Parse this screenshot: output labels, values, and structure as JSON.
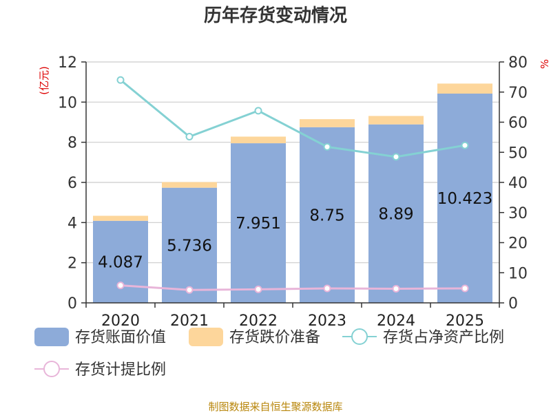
{
  "chart_data": {
    "type": "bar",
    "title": "历年存货变动情况",
    "categories": [
      "2020",
      "2021",
      "2022",
      "2023",
      "2024",
      "2025"
    ],
    "left_axis": {
      "label": "(亿元)",
      "ylim": [
        0,
        12
      ],
      "ticks": [
        "0",
        "2",
        "4",
        "6",
        "8",
        "10",
        "12"
      ]
    },
    "right_axis": {
      "label": "%",
      "ylim": [
        0,
        80
      ],
      "ticks": [
        "0",
        "10",
        "20",
        "30",
        "40",
        "50",
        "60",
        "70",
        "80"
      ]
    },
    "series": [
      {
        "name": "存货账面价值",
        "type": "bar",
        "stack": "inventory",
        "axis": "left",
        "color": "#8dabd9",
        "values": [
          4.087,
          5.736,
          7.951,
          8.75,
          8.89,
          10.423
        ],
        "labels": [
          "4.087",
          "5.736",
          "7.951",
          "8.75",
          "8.89",
          "10.423"
        ]
      },
      {
        "name": "存货跌价准备",
        "type": "bar",
        "stack": "inventory",
        "axis": "left",
        "color": "#fdd69b",
        "values": [
          0.25,
          0.28,
          0.33,
          0.4,
          0.42,
          0.5
        ]
      },
      {
        "name": "存货占净资产比例",
        "type": "line",
        "axis": "right",
        "color": "#84d1d3",
        "values": [
          74,
          55.2,
          63.8,
          51.8,
          48.5,
          52.3
        ]
      },
      {
        "name": "存货计提比例",
        "type": "line",
        "axis": "right",
        "color": "#e8b5d9",
        "values": [
          5.8,
          4.3,
          4.5,
          4.8,
          4.7,
          4.8
        ]
      }
    ],
    "grid": true,
    "legend_position": "bottom"
  },
  "footer": {
    "source": "制图数据来自恒生聚源数据库"
  }
}
